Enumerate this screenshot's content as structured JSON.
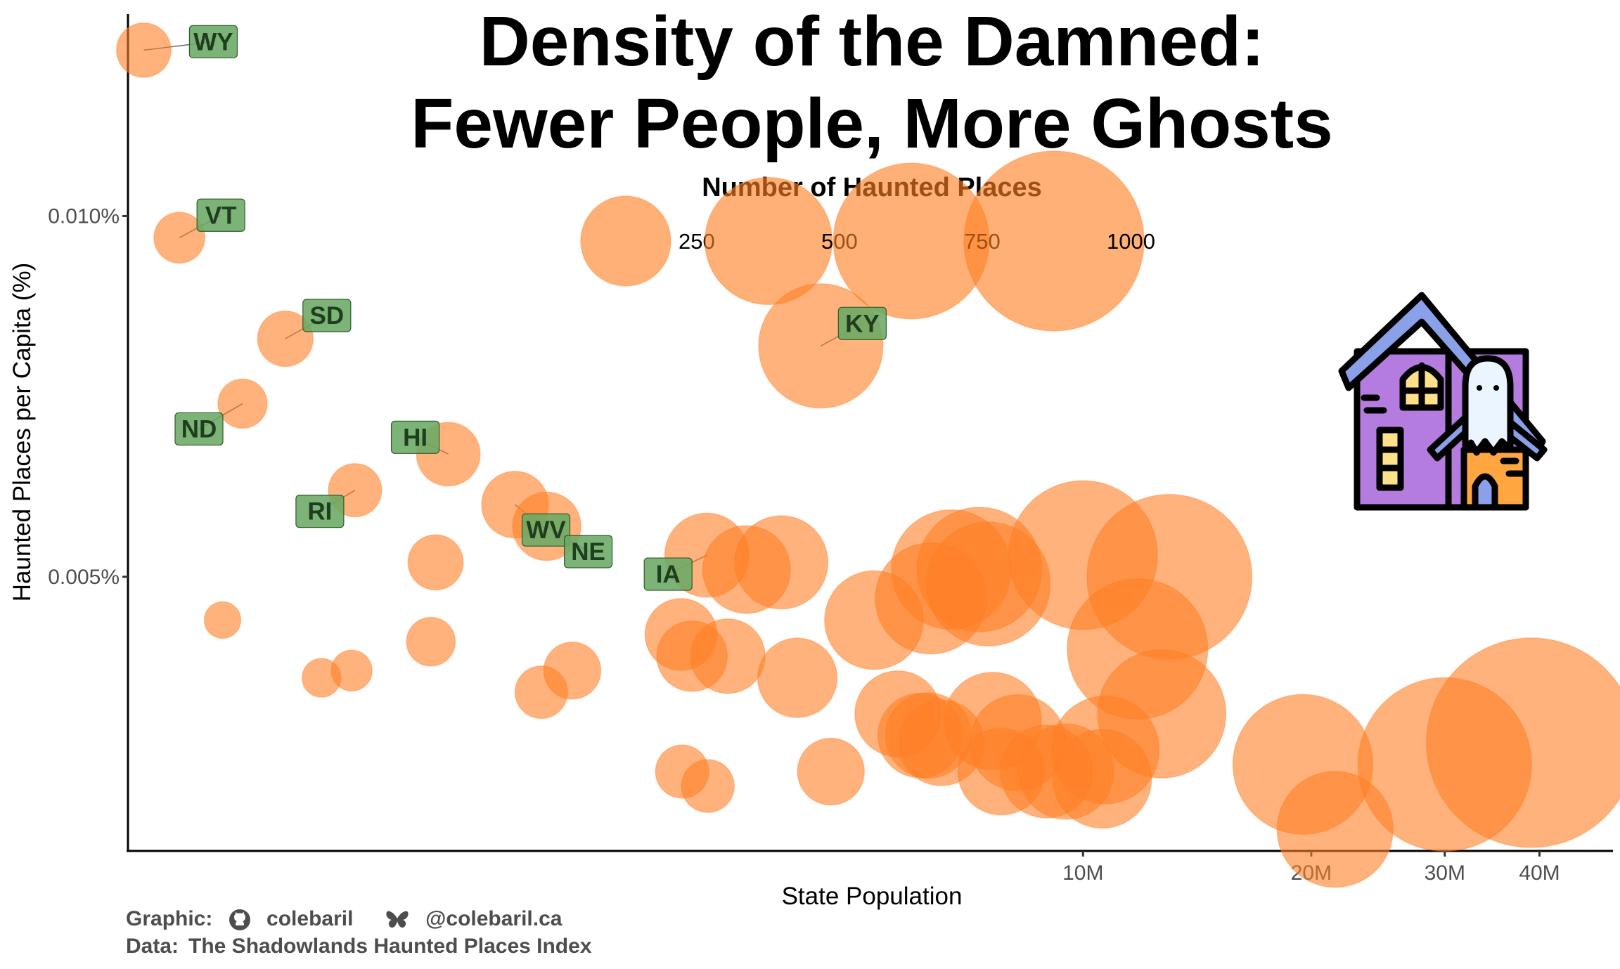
{
  "chart_data": {
    "type": "scatter",
    "title_lines": [
      "Density of the Damned:",
      "Fewer People, More Ghosts"
    ],
    "xlabel": "State Population",
    "ylabel": "Haunted Places per Capita (%)",
    "x_scale": "log",
    "xlim": [
      550000,
      50000000
    ],
    "ylim": [
      0.0012,
      0.0128
    ],
    "x_ticks": [
      {
        "value": 10000000,
        "label": "10M"
      },
      {
        "value": 20000000,
        "label": "20M"
      },
      {
        "value": 30000000,
        "label": "30M"
      },
      {
        "value": 40000000,
        "label": "40M"
      }
    ],
    "y_ticks": [
      {
        "value": 0.005,
        "label": "0.005%"
      },
      {
        "value": 0.01,
        "label": "0.010%"
      }
    ],
    "grid": false,
    "legend": {
      "title": "Number of Haunted Places",
      "placement": "top-center",
      "sizes": [
        {
          "value": 250,
          "label": "250"
        },
        {
          "value": 500,
          "label": "500"
        },
        {
          "value": 750,
          "label": "750"
        },
        {
          "value": 1000,
          "label": "1000"
        }
      ]
    },
    "point_color": "#ff7f24",
    "label_fill": "#6aaa64",
    "points": [
      {
        "label": "WY",
        "pop": 577000,
        "pct": 0.0123,
        "count": 71
      },
      {
        "label": "VT",
        "pop": 643000,
        "pct": 0.0097,
        "count": 62
      },
      {
        "label": "ND",
        "pop": 779000,
        "pct": 0.0074,
        "count": 58
      },
      {
        "label": "SD",
        "pop": 887000,
        "pct": 0.0083,
        "count": 74
      },
      {
        "label": "RI",
        "pop": 1096000,
        "pct": 0.0062,
        "count": 68
      },
      {
        "label": "HI",
        "pop": 1455000,
        "pct": 0.0067,
        "count": 97
      },
      {
        "label": "WV",
        "pop": 1782000,
        "pct": 0.006,
        "count": 107
      },
      {
        "label": "NE",
        "pop": 1962000,
        "pct": 0.0057,
        "count": 112
      },
      {
        "label": "IA",
        "pop": 3190000,
        "pct": 0.0053,
        "count": 169
      },
      {
        "label": "KY",
        "pop": 4510000,
        "pct": 0.0082,
        "count": 370
      },
      {
        "label": "",
        "pop": 733000,
        "pct": 0.0044,
        "count": 32
      },
      {
        "label": "",
        "pop": 990000,
        "pct": 0.0036,
        "count": 36
      },
      {
        "label": "",
        "pop": 1085000,
        "pct": 0.0037,
        "count": 40
      },
      {
        "label": "",
        "pop": 1400000,
        "pct": 0.0052,
        "count": 73
      },
      {
        "label": "",
        "pop": 1380000,
        "pct": 0.0041,
        "count": 57
      },
      {
        "label": "",
        "pop": 1930000,
        "pct": 0.0034,
        "count": 66
      },
      {
        "label": "",
        "pop": 2120000,
        "pct": 0.0037,
        "count": 78
      },
      {
        "label": "",
        "pop": 2950000,
        "pct": 0.0042,
        "count": 124
      },
      {
        "label": "",
        "pop": 3050000,
        "pct": 0.0039,
        "count": 119
      },
      {
        "label": "",
        "pop": 2960000,
        "pct": 0.0023,
        "count": 68
      },
      {
        "label": "",
        "pop": 3200000,
        "pct": 0.0021,
        "count": 67
      },
      {
        "label": "",
        "pop": 3400000,
        "pct": 0.0039,
        "count": 133
      },
      {
        "label": "",
        "pop": 3600000,
        "pct": 0.0051,
        "count": 184
      },
      {
        "label": "",
        "pop": 4000000,
        "pct": 0.0052,
        "count": 208
      },
      {
        "label": "",
        "pop": 4200000,
        "pct": 0.0036,
        "count": 151
      },
      {
        "label": "",
        "pop": 4650000,
        "pct": 0.0023,
        "count": 107
      },
      {
        "label": "",
        "pop": 5300000,
        "pct": 0.0044,
        "count": 233
      },
      {
        "label": "",
        "pop": 5700000,
        "pct": 0.0031,
        "count": 177
      },
      {
        "label": "",
        "pop": 6100000,
        "pct": 0.0028,
        "count": 171
      },
      {
        "label": "",
        "pop": 6300000,
        "pct": 0.0047,
        "count": 296
      },
      {
        "label": "",
        "pop": 6250000,
        "pct": 0.0028,
        "count": 175
      },
      {
        "label": "",
        "pop": 6700000,
        "pct": 0.0051,
        "count": 342
      },
      {
        "label": "",
        "pop": 6500000,
        "pct": 0.0027,
        "count": 176
      },
      {
        "label": "",
        "pop": 7300000,
        "pct": 0.0051,
        "count": 372
      },
      {
        "label": "",
        "pop": 7500000,
        "pct": 0.0049,
        "count": 368
      },
      {
        "label": "",
        "pop": 7600000,
        "pct": 0.003,
        "count": 228
      },
      {
        "label": "",
        "pop": 7800000,
        "pct": 0.0023,
        "count": 180
      },
      {
        "label": "",
        "pop": 8200000,
        "pct": 0.0027,
        "count": 221
      },
      {
        "label": "",
        "pop": 8950000,
        "pct": 0.0023,
        "count": 206
      },
      {
        "label": "",
        "pop": 9500000,
        "pct": 0.0023,
        "count": 218
      },
      {
        "label": "",
        "pop": 10000000,
        "pct": 0.0053,
        "count": 530
      },
      {
        "label": "",
        "pop": 10600000,
        "pct": 0.0022,
        "count": 233
      },
      {
        "label": "",
        "pop": 10700000,
        "pct": 0.0026,
        "count": 278
      },
      {
        "label": "",
        "pop": 11800000,
        "pct": 0.004,
        "count": 472
      },
      {
        "label": "",
        "pop": 12700000,
        "pct": 0.0031,
        "count": 394
      },
      {
        "label": "",
        "pop": 13000000,
        "pct": 0.005,
        "count": 650
      },
      {
        "label": "",
        "pop": 19500000,
        "pct": 0.0024,
        "count": 468
      },
      {
        "label": "",
        "pop": 21500000,
        "pct": 0.0015,
        "count": 322
      },
      {
        "label": "",
        "pop": 30000000,
        "pct": 0.0024,
        "count": 720
      },
      {
        "label": "",
        "pop": 39000000,
        "pct": 0.0027,
        "count": 1050
      }
    ]
  },
  "caption": {
    "graphic_label": "Graphic:",
    "github_icon": "github-icon",
    "github_handle": "colebaril",
    "bluesky_icon": "butterfly-icon",
    "bluesky_handle": "@colebaril.ca",
    "data_label": "Data:",
    "data_source_1": "The Shadowlands",
    "data_source_2": "Haunted Places Index"
  },
  "illustration": "haunted-house-icon"
}
